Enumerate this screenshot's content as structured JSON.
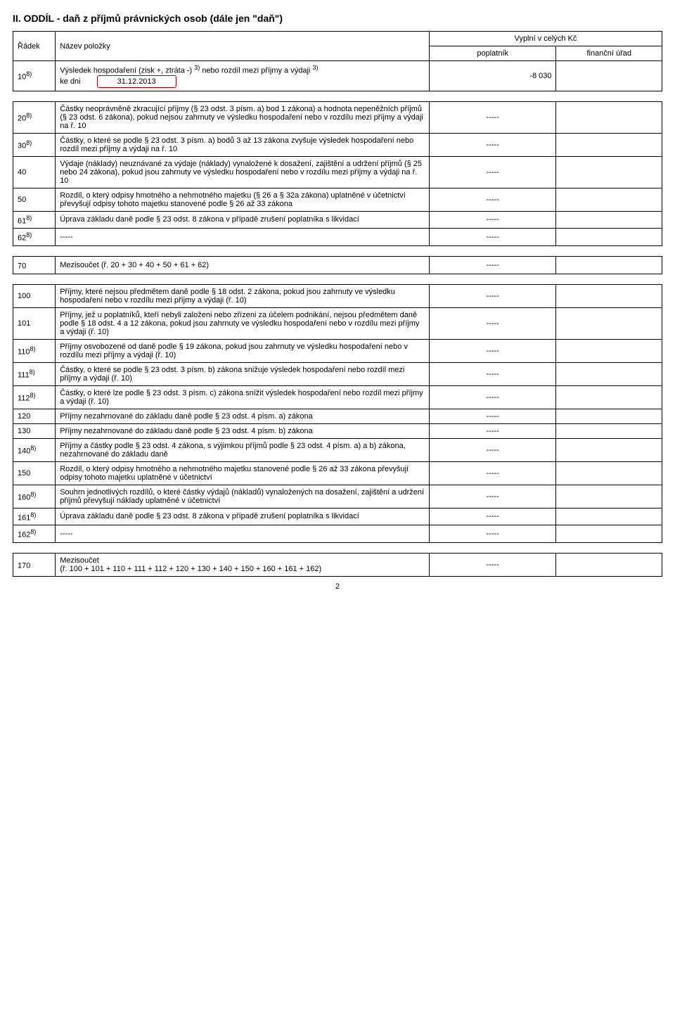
{
  "page_number": "2",
  "section_title": "II. ODDÍL - daň z příjmů právnických osob (dále jen \"daň\")",
  "header": {
    "radek": "Řádek",
    "nazev": "Název položky",
    "vyplni": "Vyplní v celých Kč",
    "poplatnik": "poplatník",
    "finurad": "finanční úřad"
  },
  "row10": {
    "radek": "10",
    "sup": "8)",
    "line1_a": "Výsledek hospodaření (zisk +, ztráta -) ",
    "line1_sup1": "3)",
    "line1_b": " nebo rozdíl mezi příjmy a výdaji ",
    "line1_sup2": "3)",
    "line2_a": "ke dni",
    "date": "31.12.2013",
    "value": "-8 030"
  },
  "rows_a": [
    {
      "radek": "20",
      "sup": "8)",
      "text": "Částky neoprávněně zkracující příjmy (§ 23 odst. 3 písm. a) bod 1 zákona) a hodnota nepeněžních příjmů (§ 23 odst. 6 zákona), pokud nejsou zahrnuty ve výsledku hospodaření nebo v rozdílu mezi příjmy a výdaji na ř. 10",
      "value": "-----"
    },
    {
      "radek": "30",
      "sup": "8)",
      "text": "Částky, o které se podle § 23 odst. 3 písm. a) bodů 3 až 13 zákona zvyšuje výsledek hospodaření nebo rozdíl mezi příjmy a výdaji na ř. 10",
      "value": "-----"
    },
    {
      "radek": "40",
      "sup": "",
      "text": "Výdaje (náklady) neuznávané za výdaje (náklady) vynaložené k dosažení, zajištění a udržení příjmů (§ 25 nebo 24 zákona), pokud jsou zahrnuty ve výsledku hospodaření nebo v rozdílu mezi příjmy a výdaji na ř. 10",
      "value": "-----"
    },
    {
      "radek": "50",
      "sup": "",
      "text": "Rozdíl, o který odpisy hmotného a nehmotného majetku (§ 26 a § 32a zákona) uplatněné v účetnictví převyšují odpisy tohoto majetku stanovené podle § 26 až 33 zákona",
      "value": "-----"
    },
    {
      "radek": "61",
      "sup": "8)",
      "text": "Úprava základu daně podle § 23 odst. 8 zákona v případě zrušení poplatníka s likvidací",
      "value": "-----"
    },
    {
      "radek": "62",
      "sup": "8)",
      "text": "-----",
      "value": "-----"
    }
  ],
  "row70": {
    "radek": "70",
    "sup": "",
    "text": "Mezisoučet (ř. 20 + 30 + 40 + 50 + 61 + 62)",
    "value": "-----"
  },
  "rows_b": [
    {
      "radek": "100",
      "sup": "",
      "text": "Příjmy, které nejsou předmětem daně podle § 18 odst. 2 zákona, pokud jsou zahrnuty ve výsledku hospodaření nebo v rozdílu mezi příjmy a výdaji (ř. 10)",
      "value": "-----"
    },
    {
      "radek": "101",
      "sup": "",
      "text": "Příjmy, jež u poplatníků, kteří nebyli založeni nebo zřízeni za účelem podnikání, nejsou předmětem daně podle § 18 odst. 4 a 12 zákona, pokud jsou zahrnuty ve výsledku hospodaření nebo v rozdílu mezi příjmy a výdaji (ř. 10)",
      "value": "-----"
    },
    {
      "radek": "110",
      "sup": "8)",
      "text": "Příjmy osvobozené od daně podle § 19 zákona, pokud jsou zahrnuty ve výsledku hospodaření nebo v rozdílu mezi příjmy a výdaji (ř. 10)",
      "value": "-----"
    },
    {
      "radek": "111",
      "sup": "8)",
      "text": "Částky, o které se podle § 23 odst. 3 písm. b) zákona snižuje výsledek hospodaření nebo rozdíl mezi příjmy a výdaji (ř. 10)",
      "value": "-----"
    },
    {
      "radek": "112",
      "sup": "8)",
      "text": "Částky, o které lze podle § 23 odst. 3 písm. c) zákona snížit výsledek hospodaření nebo rozdíl mezi příjmy a výdaji (ř. 10)",
      "value": "-----"
    },
    {
      "radek": "120",
      "sup": "",
      "text": "Příjmy nezahrnované do základu daně podle § 23 odst. 4 písm. a) zákona",
      "value": "-----"
    },
    {
      "radek": "130",
      "sup": "",
      "text": "Příjmy nezahrnované do základu daně podle § 23 odst. 4 písm. b) zákona",
      "value": "-----"
    },
    {
      "radek": "140",
      "sup": "8)",
      "text": "Příjmy a částky podle § 23 odst. 4 zákona, s výjimkou příjmů podle § 23 odst. 4 písm. a) a b) zákona, nezahrnované do základu daně",
      "value": "-----"
    },
    {
      "radek": "150",
      "sup": "",
      "text": "Rozdíl, o který odpisy hmotného a nehmotného majetku stanovené podle § 26 až 33 zákona převyšují odpisy tohoto majetku uplatněné v účetnictví",
      "value": "-----"
    },
    {
      "radek": "160",
      "sup": "8)",
      "text": "Souhrn jednotlivých rozdílů, o které částky výdajů (nákladů) vynaložených na dosažení, zajištění a udržení příjmů převyšují náklady uplatněné v účetnictví",
      "value": "-----"
    },
    {
      "radek": "161",
      "sup": "8)",
      "text": "Úprava základu daně podle § 23 odst. 8 zákona v případě zrušení poplatníka s likvidací",
      "value": "-----"
    },
    {
      "radek": "162",
      "sup": "8)",
      "text": "-----",
      "value": "-----"
    }
  ],
  "row170": {
    "radek": "170",
    "sup": "",
    "line1": "Mezisoučet",
    "line2": "(ř. 100 + 101 + 110 + 111 + 112 + 120 + 130 + 140 + 150 + 160 + 161 + 162)",
    "value": "-----"
  }
}
